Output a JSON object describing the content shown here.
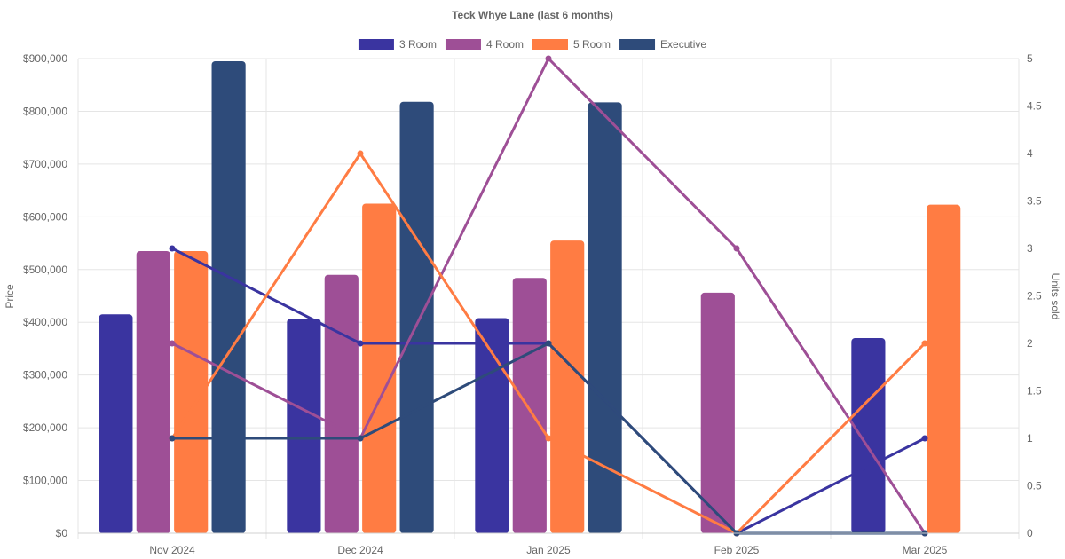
{
  "chart_data": {
    "type": "bar",
    "title": "Teck Whye Lane (last 6 months)",
    "categories": [
      "Nov 2024",
      "Dec 2024",
      "Jan 2025",
      "Feb 2025",
      "Mar 2025"
    ],
    "ylabel": "Price",
    "y2label": "Units sold",
    "ylim": [
      0,
      900000
    ],
    "y2lim": [
      0,
      5
    ],
    "y_ticks": [
      "$0",
      "$100,000",
      "$200,000",
      "$300,000",
      "$400,000",
      "$500,000",
      "$600,000",
      "$700,000",
      "$800,000",
      "$900,000"
    ],
    "y2_ticks": [
      "0",
      "0.5",
      "1",
      "1.5",
      "2",
      "2.5",
      "3",
      "3.5",
      "4",
      "4.5",
      "5"
    ],
    "legend_position": "top",
    "grid": true,
    "series": [
      {
        "name": "3 Room",
        "color": "#3a34a0",
        "price": [
          415000,
          407000,
          408000,
          null,
          370000
        ],
        "units": [
          3,
          2,
          2,
          0,
          1
        ]
      },
      {
        "name": "4 Room",
        "color": "#9e4f96",
        "price": [
          535000,
          490000,
          484000,
          456000,
          null
        ],
        "units": [
          2,
          1,
          5,
          3,
          0
        ]
      },
      {
        "name": "5 Room",
        "color": "#ff7c43",
        "price": [
          535000,
          625000,
          555000,
          null,
          623000
        ],
        "units": [
          1,
          4,
          1,
          0,
          2
        ]
      },
      {
        "name": "Executive",
        "color": "#2e4b7a",
        "price": [
          895000,
          818000,
          817000,
          null,
          null
        ],
        "units": [
          1,
          1,
          2,
          0,
          0
        ]
      }
    ]
  }
}
